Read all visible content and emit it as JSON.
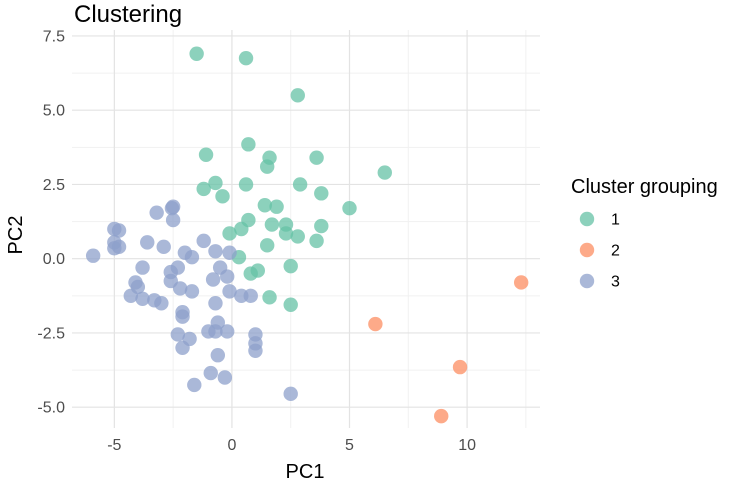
{
  "chart_data": {
    "type": "scatter",
    "title": "Clustering",
    "xlabel": "PC1",
    "ylabel": "PC2",
    "xlim": [
      -6.8,
      13.1
    ],
    "ylim": [
      -5.7,
      7.7
    ],
    "x_ticks": [
      -5,
      0,
      5,
      10
    ],
    "x_tick_labels": [
      "-5",
      "0",
      "5",
      "10"
    ],
    "y_ticks": [
      -5.0,
      -2.5,
      0.0,
      2.5,
      5.0,
      7.5
    ],
    "y_tick_labels": [
      "-5.0",
      "-2.5",
      "0.0",
      "2.5",
      "5.0",
      "7.5"
    ],
    "grid": true,
    "legend": {
      "title": "Cluster grouping",
      "position": "right"
    },
    "series": [
      {
        "name": "1",
        "color": "#66c2a5",
        "points": [
          [
            -1.5,
            6.9
          ],
          [
            0.6,
            6.75
          ],
          [
            2.8,
            5.5
          ],
          [
            -1.1,
            3.5
          ],
          [
            0.7,
            3.85
          ],
          [
            1.6,
            3.4
          ],
          [
            3.6,
            3.4
          ],
          [
            6.5,
            2.9
          ],
          [
            1.5,
            3.1
          ],
          [
            -1.2,
            2.35
          ],
          [
            -0.7,
            2.55
          ],
          [
            0.6,
            2.5
          ],
          [
            2.9,
            2.5
          ],
          [
            -0.4,
            2.1
          ],
          [
            3.8,
            2.2
          ],
          [
            1.4,
            1.8
          ],
          [
            1.9,
            1.75
          ],
          [
            5.0,
            1.7
          ],
          [
            0.7,
            1.3
          ],
          [
            1.7,
            1.15
          ],
          [
            2.3,
            1.15
          ],
          [
            3.8,
            1.1
          ],
          [
            0.4,
            1.0
          ],
          [
            -0.1,
            0.85
          ],
          [
            2.3,
            0.85
          ],
          [
            2.8,
            0.75
          ],
          [
            3.6,
            0.6
          ],
          [
            1.5,
            0.45
          ],
          [
            0.3,
            0.05
          ],
          [
            2.5,
            -0.25
          ],
          [
            1.1,
            -0.4
          ],
          [
            0.8,
            -0.5
          ],
          [
            1.6,
            -1.3
          ],
          [
            2.5,
            -1.55
          ]
        ]
      },
      {
        "name": "2",
        "color": "#fc8d62",
        "points": [
          [
            12.3,
            -0.8
          ],
          [
            6.1,
            -2.2
          ],
          [
            9.7,
            -3.65
          ],
          [
            8.9,
            -5.3
          ]
        ]
      },
      {
        "name": "3",
        "color": "#8da0cb",
        "points": [
          [
            -3.2,
            1.55
          ],
          [
            -2.5,
            1.75
          ],
          [
            -2.55,
            1.7
          ],
          [
            -2.5,
            1.3
          ],
          [
            -5.0,
            1.0
          ],
          [
            -4.8,
            0.95
          ],
          [
            -5.0,
            0.55
          ],
          [
            -4.8,
            0.4
          ],
          [
            -5.0,
            0.35
          ],
          [
            -5.9,
            0.1
          ],
          [
            -3.6,
            0.55
          ],
          [
            -2.9,
            0.4
          ],
          [
            -1.2,
            0.6
          ],
          [
            -2.0,
            0.2
          ],
          [
            -1.7,
            0.05
          ],
          [
            -0.1,
            0.2
          ],
          [
            -0.7,
            0.25
          ],
          [
            -3.8,
            -0.3
          ],
          [
            -2.3,
            -0.3
          ],
          [
            -2.6,
            -0.45
          ],
          [
            -0.5,
            -0.3
          ],
          [
            -4.1,
            -0.8
          ],
          [
            -4.0,
            -0.95
          ],
          [
            -2.6,
            -0.75
          ],
          [
            -0.8,
            -0.7
          ],
          [
            -0.2,
            -0.6
          ],
          [
            -4.3,
            -1.25
          ],
          [
            -3.8,
            -1.35
          ],
          [
            -3.3,
            -1.4
          ],
          [
            -3.0,
            -1.5
          ],
          [
            -2.2,
            -1.0
          ],
          [
            -1.7,
            -1.1
          ],
          [
            -0.7,
            -1.5
          ],
          [
            -0.1,
            -1.1
          ],
          [
            0.4,
            -1.25
          ],
          [
            0.8,
            -1.25
          ],
          [
            -2.1,
            -1.8
          ],
          [
            -2.1,
            -1.95
          ],
          [
            -0.6,
            -2.15
          ],
          [
            -1.0,
            -2.45
          ],
          [
            -0.7,
            -2.45
          ],
          [
            -0.2,
            -2.45
          ],
          [
            1.0,
            -2.55
          ],
          [
            -2.3,
            -2.55
          ],
          [
            -1.8,
            -2.7
          ],
          [
            1.0,
            -2.85
          ],
          [
            -2.1,
            -3.0
          ],
          [
            1.0,
            -3.1
          ],
          [
            -0.6,
            -3.25
          ],
          [
            -0.9,
            -3.85
          ],
          [
            -0.3,
            -4.0
          ],
          [
            -1.6,
            -4.25
          ],
          [
            2.5,
            -4.55
          ]
        ]
      }
    ]
  }
}
